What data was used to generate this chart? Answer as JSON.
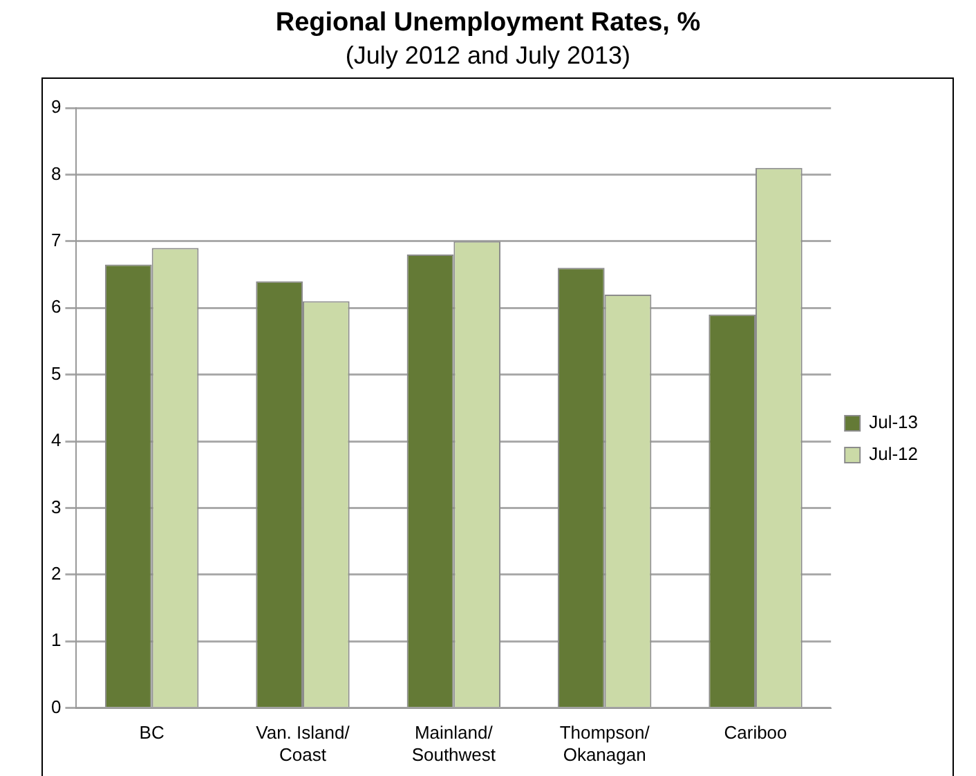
{
  "chart_data": {
    "type": "bar",
    "title": "Regional Unemployment Rates, %",
    "subtitle": "(July 2012 and July 2013)",
    "categories": [
      "BC",
      "Van. Island/\nCoast",
      "Mainland/\nSouthwest",
      "Thompson/\nOkanagan",
      "Cariboo"
    ],
    "series": [
      {
        "name": "Jul-13",
        "color": "#647a36",
        "values": [
          6.65,
          6.4,
          6.8,
          6.6,
          5.9
        ]
      },
      {
        "name": "Jul-12",
        "color": "#cbdaa7",
        "values": [
          6.9,
          6.1,
          7.0,
          6.2,
          8.1
        ]
      }
    ],
    "ylim": [
      0,
      9
    ],
    "yticks": [
      0,
      1,
      2,
      3,
      4,
      5,
      6,
      7,
      8,
      9
    ],
    "grid": "y",
    "legend": "right"
  }
}
